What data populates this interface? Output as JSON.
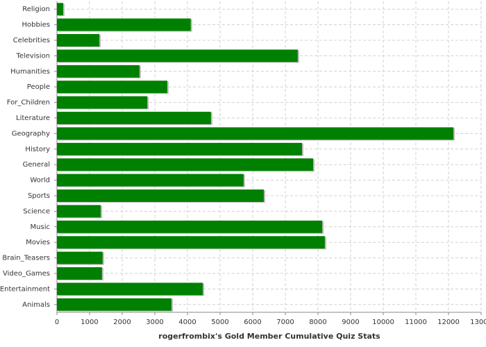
{
  "chart_data": {
    "type": "hbar",
    "x_label": "rogerfrombix's Gold Member Cumulative Quiz Stats",
    "categories": [
      "Religion",
      "Hobbies",
      "Celebrities",
      "Television",
      "Humanities",
      "People",
      "For_Children",
      "Literature",
      "Geography",
      "History",
      "General",
      "World",
      "Sports",
      "Science",
      "Music",
      "Movies",
      "Brain_Teasers",
      "Video_Games",
      "Entertainment",
      "Animals"
    ],
    "values": [
      190,
      4100,
      1300,
      7380,
      2530,
      3380,
      2770,
      4720,
      12150,
      7510,
      7850,
      5720,
      6340,
      1340,
      8130,
      8210,
      1400,
      1380,
      4470,
      3510
    ],
    "color": "#008000",
    "xlim": [
      0,
      13000
    ],
    "xticks": [
      0,
      1000,
      2000,
      3000,
      4000,
      5000,
      6000,
      7000,
      8000,
      9000,
      10000,
      11000,
      12000,
      13000
    ],
    "grid": true
  }
}
